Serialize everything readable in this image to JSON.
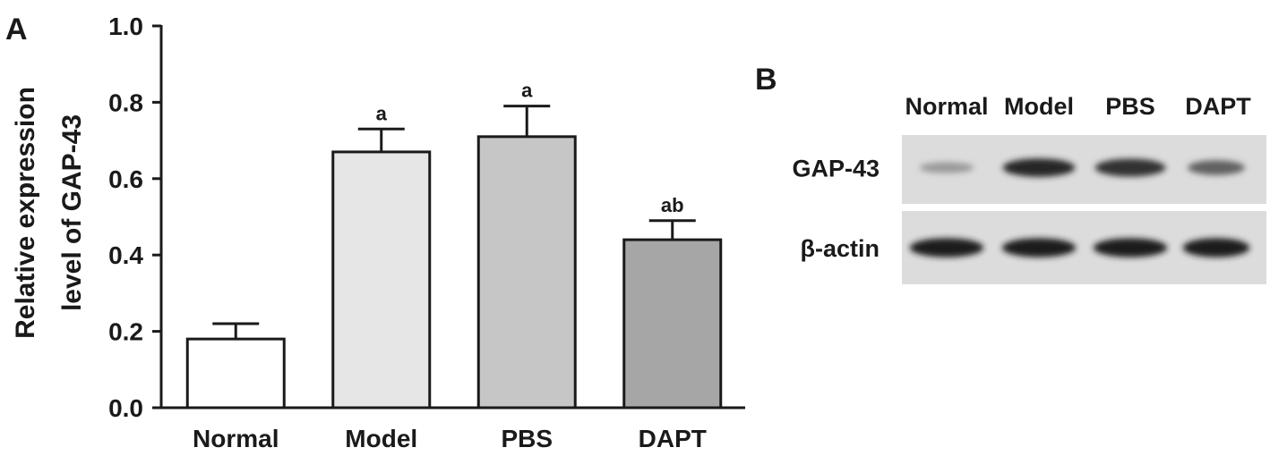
{
  "chart_data": {
    "type": "bar",
    "panel": "A",
    "categories": [
      "Normal",
      "Model",
      "PBS",
      "DAPT"
    ],
    "values": [
      0.18,
      0.67,
      0.71,
      0.44
    ],
    "errors": [
      0.04,
      0.06,
      0.08,
      0.05
    ],
    "significance": [
      "",
      "a",
      "a",
      "ab"
    ],
    "bar_colors": [
      "#ffffff",
      "#e6e6e6",
      "#c6c6c6",
      "#a6a6a6"
    ],
    "ylabel_lines": [
      "Relative expression",
      "level of GAP-43"
    ],
    "xlabel": "",
    "ylim": [
      0,
      1.0
    ],
    "yticks": [
      "0.0",
      "0.2",
      "0.4",
      "0.6",
      "0.8",
      "1.0"
    ],
    "grid": false,
    "legend": false
  },
  "blot": {
    "panel": "B",
    "lanes": [
      "Normal",
      "Model",
      "PBS",
      "DAPT"
    ],
    "rows": [
      {
        "label": "GAP-43",
        "band_intensity": [
          0.3,
          0.9,
          0.85,
          0.6
        ]
      },
      {
        "label": "β-actin",
        "band_intensity": [
          0.95,
          0.95,
          0.95,
          0.95
        ]
      }
    ]
  }
}
